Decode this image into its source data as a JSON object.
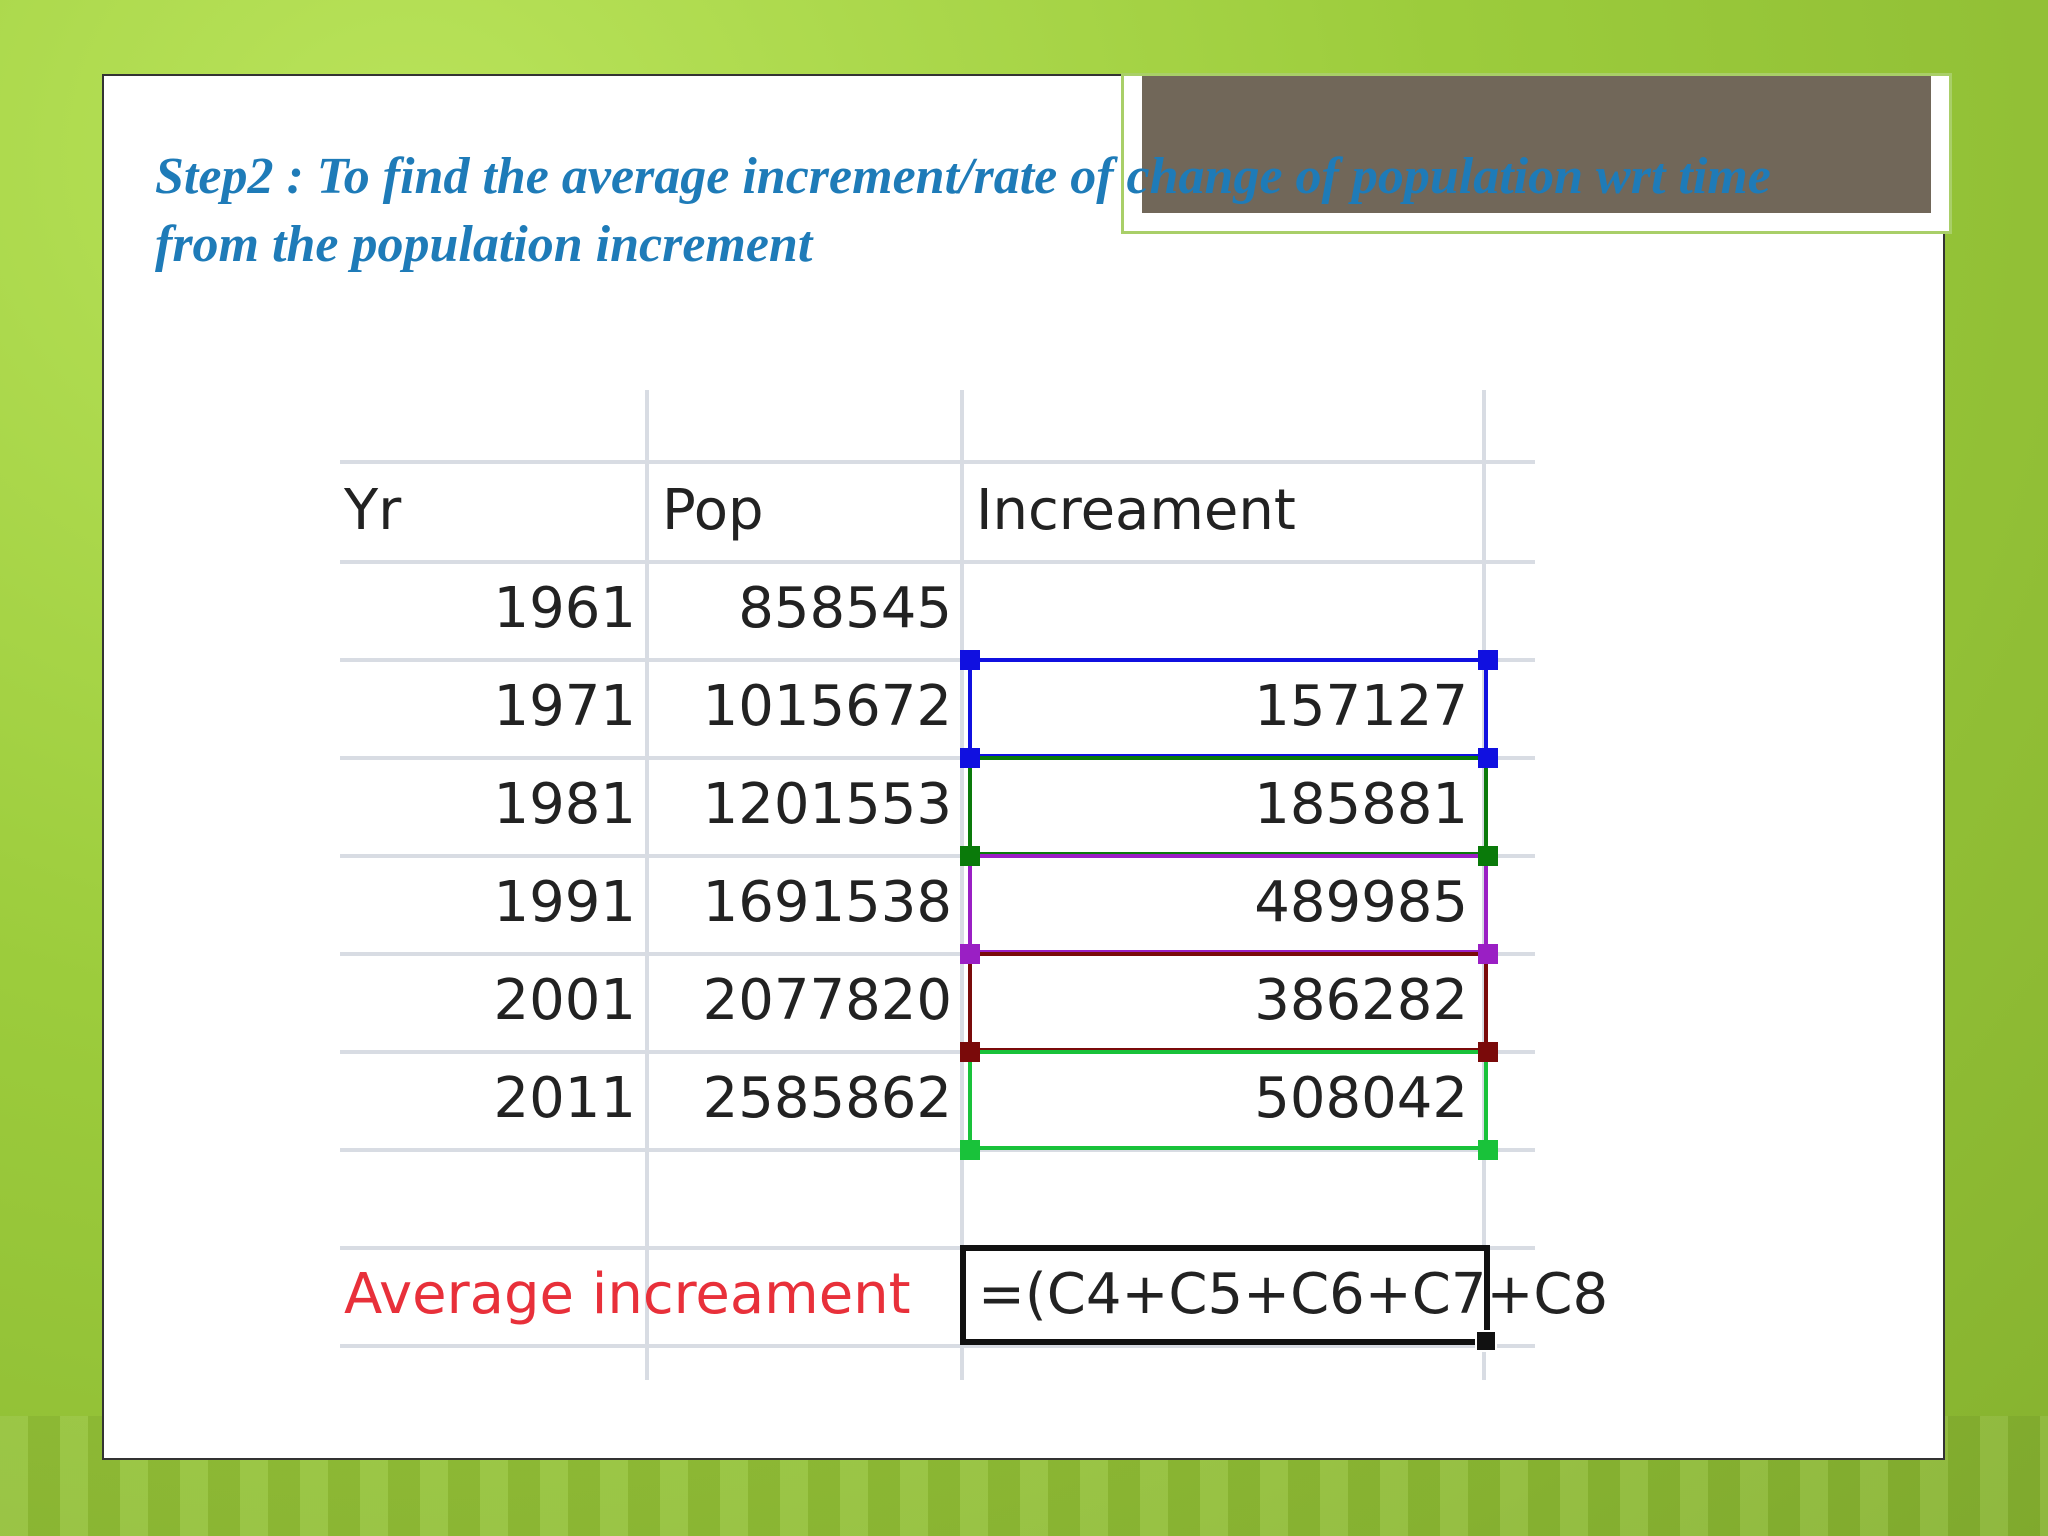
{
  "slide": {
    "heading": "Step2 : To find the average increment/rate of  change of population wrt time from the population increment"
  },
  "spreadsheet": {
    "headers": [
      "Yr",
      "Pop",
      "Increament"
    ],
    "rows": [
      {
        "yr": "1961",
        "pop": "858545",
        "inc": ""
      },
      {
        "yr": "1971",
        "pop": "1015672",
        "inc": "157127"
      },
      {
        "yr": "1981",
        "pop": "1201553",
        "inc": "185881"
      },
      {
        "yr": "1991",
        "pop": "1691538",
        "inc": "489985"
      },
      {
        "yr": "2001",
        "pop": "2077820",
        "inc": "386282"
      },
      {
        "yr": "2011",
        "pop": "2585862",
        "inc": "508042"
      }
    ],
    "average_label": "Average increament",
    "formula": "=(C4+C5+C6+C7+C8",
    "range_colors": [
      "#1010e0",
      "#0a7a0a",
      "#9a1fc4",
      "#7a0a0a",
      "#19c23a"
    ]
  }
}
